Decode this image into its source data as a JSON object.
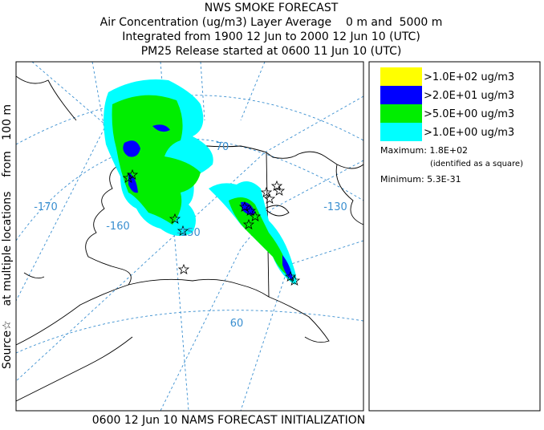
{
  "header": {
    "title": "NWS SMOKE FORECAST",
    "lines": [
      "Air Concentration (ug/m3) Layer Average    0 m and  5000 m",
      "Integrated from 1900 12 Jun to 2000 12 Jun 10 (UTC)",
      "PM25 Release started at 0600 11 Jun 10 (UTC)"
    ]
  },
  "side_label": "Source☆    at multiple locations    from   100 m",
  "footer": "0600 12 Jun 10 NAMS FORECAST INITIALIZATION",
  "map": {
    "grid_labels": [
      "-170",
      "-160",
      "-150",
      "-130",
      "70",
      "60"
    ]
  },
  "legend": {
    "entries": [
      {
        "label": ">1.0E+02 ug/m3",
        "color": "#ffff00"
      },
      {
        "label": ">2.0E+01 ug/m3",
        "color": "#0000ff"
      },
      {
        "label": ">5.0E+00 ug/m3",
        "color": "#00ee00"
      },
      {
        "label": ">1.0E+00 ug/m3",
        "color": "#00ffff"
      }
    ],
    "maximum": "Maximum: 1.8E+02",
    "maximum_note": "(identified as a square)",
    "minimum": "Minimum: 5.3E-31"
  }
}
